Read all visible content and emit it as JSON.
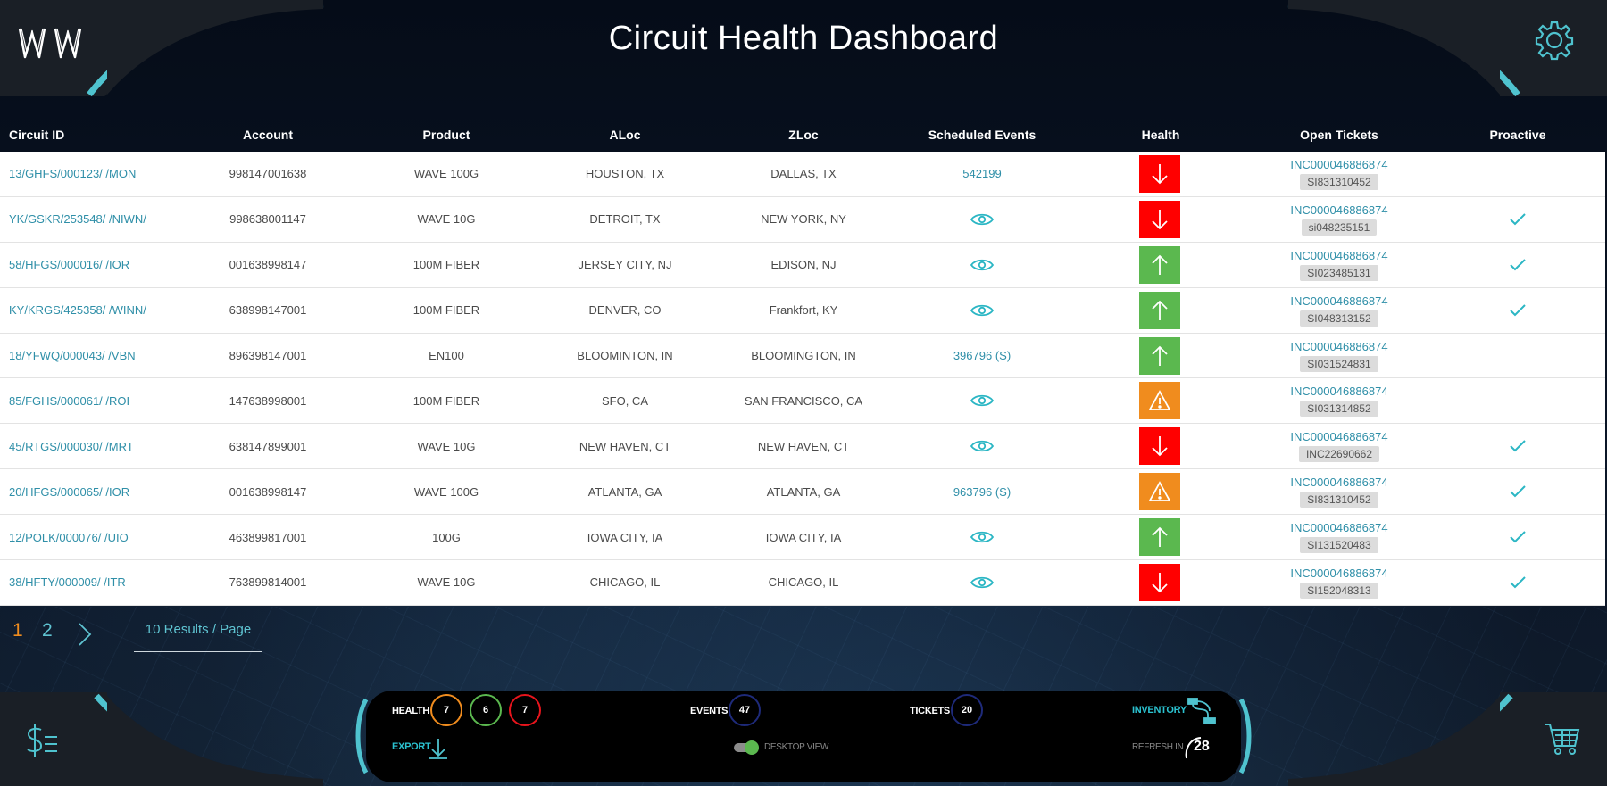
{
  "header": {
    "title": "Circuit Health Dashboard",
    "logo_icon": "ww-logo",
    "settings_icon": "gear-icon"
  },
  "table": {
    "columns": [
      "Circuit ID",
      "Account",
      "Product",
      "ALoc",
      "ZLoc",
      "Scheduled Events",
      "Health",
      "Open Tickets",
      "Proactive"
    ],
    "rows": [
      {
        "circuit_id": "13/GHFS/000123/ /MON",
        "account": "998147001638",
        "product": "WAVE 100G",
        "aloc": "HOUSTON, TX",
        "zloc": "DALLAS, TX",
        "events": "542199",
        "events_icon": false,
        "health": "down",
        "ticket": "INC000046886874",
        "ticket_badge": "SI831310452",
        "proactive": false
      },
      {
        "circuit_id": "YK/GSKR/253548/ /NIWN/",
        "account": "998638001147",
        "product": "WAVE 10G",
        "aloc": "DETROIT, TX",
        "zloc": "NEW YORK, NY",
        "events": "",
        "events_icon": true,
        "health": "down",
        "ticket": "INC000046886874",
        "ticket_badge": "si048235151",
        "proactive": true
      },
      {
        "circuit_id": "58/HFGS/000016/ /IOR",
        "account": "001638998147",
        "product": "100M FIBER",
        "aloc": "JERSEY CITY, NJ",
        "zloc": "EDISON, NJ",
        "events": "",
        "events_icon": true,
        "health": "up",
        "ticket": "INC000046886874",
        "ticket_badge": "SI023485131",
        "proactive": true
      },
      {
        "circuit_id": "KY/KRGS/425358/ /WINN/",
        "account": "638998147001",
        "product": "100M FIBER",
        "aloc": "DENVER, CO",
        "zloc": "Frankfort, KY",
        "events": "",
        "events_icon": true,
        "health": "up",
        "ticket": "INC000046886874",
        "ticket_badge": "SI048313152",
        "proactive": true
      },
      {
        "circuit_id": "18/YFWQ/000043/ /VBN",
        "account": "896398147001",
        "product": "EN100",
        "aloc": "BLOOMINTON, IN",
        "zloc": "BLOOMINGTON, IN",
        "events": "396796 (S)",
        "events_icon": false,
        "health": "up",
        "ticket": "INC000046886874",
        "ticket_badge": "SI031524831",
        "proactive": false
      },
      {
        "circuit_id": "85/FGHS/000061/ /ROI",
        "account": "147638998001",
        "product": "100M FIBER",
        "aloc": "SFO, CA",
        "zloc": "SAN FRANCISCO, CA",
        "events": "",
        "events_icon": true,
        "health": "warning",
        "ticket": "INC000046886874",
        "ticket_badge": "SI031314852",
        "proactive": false
      },
      {
        "circuit_id": "45/RTGS/000030/ /MRT",
        "account": "638147899001",
        "product": "WAVE 10G",
        "aloc": "NEW HAVEN, CT",
        "zloc": "NEW HAVEN, CT",
        "events": "",
        "events_icon": true,
        "health": "down",
        "ticket": "INC000046886874",
        "ticket_badge": "INC22690662",
        "proactive": true
      },
      {
        "circuit_id": "20/HFGS/000065/ /IOR",
        "account": "001638998147",
        "product": "WAVE 100G",
        "aloc": "ATLANTA, GA",
        "zloc": "ATLANTA, GA",
        "events": "963796 (S)",
        "events_icon": false,
        "health": "warning",
        "ticket": "INC000046886874",
        "ticket_badge": "SI831310452",
        "proactive": true
      },
      {
        "circuit_id": "12/POLK/000076/ /UIO",
        "account": "463899817001",
        "product": "100G",
        "aloc": "IOWA CITY, IA",
        "zloc": "IOWA CITY, IA",
        "events": "",
        "events_icon": true,
        "health": "up",
        "ticket": "INC000046886874",
        "ticket_badge": "SI131520483",
        "proactive": true
      },
      {
        "circuit_id": "38/HFTY/000009/ /ITR",
        "account": "763899814001",
        "product": "WAVE 10G",
        "aloc": "CHICAGO, IL",
        "zloc": "CHICAGO, IL",
        "events": "",
        "events_icon": true,
        "health": "down",
        "ticket": "INC000046886874",
        "ticket_badge": "SI152048313",
        "proactive": true
      }
    ]
  },
  "pagination": {
    "pages": [
      "1",
      "2"
    ],
    "current_page": "1",
    "per_page_label": "10  Results / Page"
  },
  "footer": {
    "health_label": "HEALTH",
    "health_counts": [
      "7",
      "6",
      "7"
    ],
    "events_label": "EVENTS",
    "events_count": "47",
    "tickets_label": "TICKETS",
    "tickets_count": "20",
    "inventory_label": "INVENTORY",
    "export_label": "EXPORT",
    "desktop_view_label": "DESKTOP VIEW",
    "refresh_label": "REFRESH IN",
    "refresh_value": "28"
  },
  "colors": {
    "accent": "#4fc3cf",
    "link": "#2f8fa8",
    "health_down": "#ff0000",
    "health_up": "#5bb84f",
    "health_warning": "#f08c1e"
  }
}
